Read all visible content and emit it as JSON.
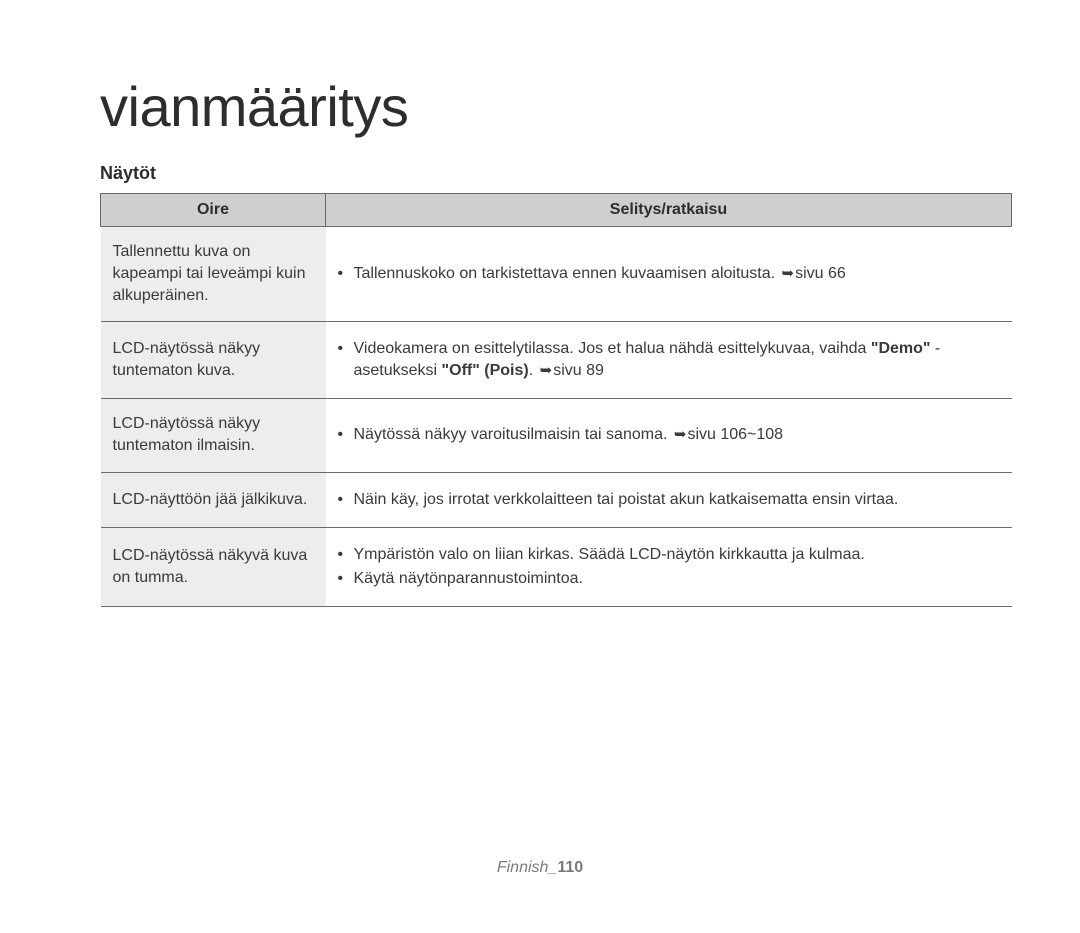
{
  "chapter_title": "vianmääritys",
  "section_heading": "Näytöt",
  "table": {
    "header_symptom": "Oire",
    "header_solution": "Selitys/ratkaisu",
    "colors": {
      "header_bg": "#cfcfcf",
      "symptom_bg": "#ededed",
      "border": "#6b6b6b",
      "text": "#3a3a3a"
    },
    "rows": [
      {
        "symptom": "Tallennettu kuva on kapeampi tai leveämpi kuin alkuperäinen.",
        "solutions": [
          {
            "pre": "Tallennuskoko on tarkistettava ennen kuvaamisen aloitusta. ",
            "page": "sivu 66"
          }
        ],
        "height": "tall"
      },
      {
        "symptom": "LCD-näytössä näkyy tuntematon kuva.",
        "solutions": [
          {
            "pre": "Videokamera on esittelytilassa. Jos et halua nähdä esittelykuvaa, vaihda ",
            "bold": "\"Demo\"",
            "mid1": " -asetukseksi ",
            "bold2": "\"Off\" (Pois)",
            "mid2": ". ",
            "page": "sivu 89"
          }
        ],
        "height": "med"
      },
      {
        "symptom": "LCD-näytössä näkyy tuntematon ilmaisin.",
        "solutions": [
          {
            "pre": "Näytössä näkyy varoitusilmaisin tai sanoma. ",
            "page": "sivu 106~108"
          }
        ],
        "height": "med"
      },
      {
        "symptom": "LCD-näyttöön jää jälkikuva.",
        "solutions": [
          {
            "pre": "Näin käy, jos irrotat verkkolaitteen tai poistat akun katkaisematta ensin virtaa."
          }
        ],
        "height": "short"
      },
      {
        "symptom": "LCD-näytössä näkyvä kuva on tumma.",
        "solutions": [
          {
            "pre": "Ympäristön valo on liian kirkas. Säädä LCD-näytön kirkkautta ja kulmaa."
          },
          {
            "pre": "Käytä näytönparannustoimintoa."
          }
        ],
        "height": "med"
      }
    ]
  },
  "footer": {
    "lang": "Finnish",
    "sep": "_",
    "page": "110"
  },
  "icons": {
    "page_arrow": "➥"
  }
}
